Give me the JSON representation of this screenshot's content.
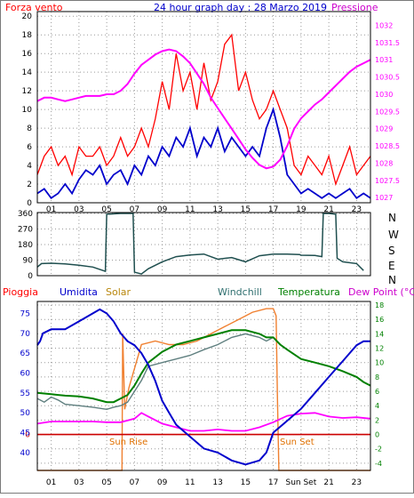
{
  "header": {
    "left_title": "Forza vento",
    "left_title_color": "#ff0000",
    "center_title": "24 hour graph day : 28 Marzo 2019",
    "center_title_color": "#0000cc",
    "right_title": "Pressione",
    "right_title_color": "#cc00cc"
  },
  "direction_labels": [
    "N",
    "W",
    "S",
    "E",
    "N"
  ],
  "bottom_headers": [
    {
      "text": "Pioggia",
      "color": "#ff0000"
    },
    {
      "text": "Umidita",
      "color": "#0000cc"
    },
    {
      "text": "Solar",
      "color": "#b8860b"
    },
    {
      "text": "Windchill",
      "color": "#2f6f6f"
    },
    {
      "text": "Temperatura",
      "color": "#008000"
    },
    {
      "text": "Dew Point (°C)",
      "color": "#cc00cc"
    }
  ],
  "annotations": {
    "sun_rise": "Sun Rise",
    "sun_set": "Sun Set",
    "sun_set_tick": "Sun Set",
    "color": "#e07000"
  },
  "colors": {
    "wind_speed": "#ff0000",
    "wind_avg": "#0000cc",
    "pressure": "#ff00ff",
    "direction": "#1f4f4f",
    "humidity": "#0000cc",
    "temperature": "#008000",
    "windchill": "#5f7f7f",
    "dewpoint": "#ff00ff",
    "solar": "#f08030",
    "rain": "#cc0000",
    "axis_left_bottom": "#0000cc",
    "axis_right_bottom": "#008000"
  },
  "chart_data": [
    {
      "type": "line",
      "name": "wind",
      "x_ticks": [
        "01",
        "03",
        "05",
        "07",
        "09",
        "11",
        "13",
        "15",
        "17",
        "19",
        "21",
        "23"
      ],
      "xlim": [
        0,
        24
      ],
      "y_left": {
        "ticks": [
          0,
          2,
          4,
          6,
          8,
          10,
          12,
          14,
          16,
          18,
          20
        ],
        "lim": [
          0,
          20.5
        ]
      },
      "y_right": {
        "ticks": [
          1027,
          1027.5,
          1028,
          1028.5,
          1029,
          1029.5,
          1030,
          1030.5,
          1031,
          1031.5,
          1032
        ],
        "lim": [
          1026.85,
          1032.4
        ]
      },
      "series": [
        {
          "name": "Forza vento",
          "axis": "left",
          "x": [
            0,
            0.5,
            1,
            1.5,
            2,
            2.5,
            3,
            3.5,
            4,
            4.5,
            5,
            5.5,
            6,
            6.5,
            7,
            7.5,
            8,
            8.5,
            9,
            9.5,
            10,
            10.5,
            11,
            11.5,
            12,
            12.5,
            13,
            13.5,
            14,
            14.5,
            15,
            15.5,
            16,
            16.5,
            17,
            17.5,
            18,
            18.5,
            19,
            19.5,
            20,
            20.5,
            21,
            21.5,
            22,
            22.5,
            23,
            23.5,
            24
          ],
          "values": [
            3,
            5,
            6,
            4,
            5,
            3,
            6,
            5,
            5,
            6,
            4,
            5,
            7,
            5,
            6,
            8,
            6,
            9,
            13,
            10,
            16,
            12,
            14,
            10,
            15,
            11,
            13,
            17,
            18,
            12,
            14,
            11,
            9,
            10,
            12,
            10,
            8,
            4,
            3,
            5,
            4,
            3,
            5,
            2,
            4,
            6,
            3,
            4,
            5
          ]
        },
        {
          "name": "Vento medio",
          "axis": "left",
          "x": [
            0,
            0.5,
            1,
            1.5,
            2,
            2.5,
            3,
            3.5,
            4,
            4.5,
            5,
            5.5,
            6,
            6.5,
            7,
            7.5,
            8,
            8.5,
            9,
            9.5,
            10,
            10.5,
            11,
            11.5,
            12,
            12.5,
            13,
            13.5,
            14,
            14.5,
            15,
            15.5,
            16,
            16.5,
            17,
            17.5,
            18,
            18.5,
            19,
            19.5,
            20,
            20.5,
            21,
            21.5,
            22,
            22.5,
            23,
            23.5,
            24
          ],
          "values": [
            1,
            1.5,
            0.5,
            1,
            2,
            1,
            2.5,
            3.5,
            3,
            4,
            2,
            3,
            3.5,
            2,
            4,
            3,
            5,
            4,
            6,
            5,
            7,
            6,
            8,
            5,
            7,
            6,
            8,
            5.5,
            7,
            6,
            5,
            6,
            5,
            8,
            10,
            7,
            3,
            2,
            1,
            1.5,
            1,
            0.5,
            1,
            0.5,
            1,
            1.5,
            0.5,
            1,
            0.5
          ]
        },
        {
          "name": "Pressione",
          "axis": "right",
          "x": [
            0,
            0.5,
            1,
            1.5,
            2,
            2.5,
            3,
            3.5,
            4,
            4.5,
            5,
            5.5,
            6,
            6.5,
            7,
            7.5,
            8,
            8.5,
            9,
            9.5,
            10,
            10.5,
            11,
            11.5,
            12,
            12.5,
            13,
            13.5,
            14,
            14.5,
            15,
            15.5,
            16,
            16.5,
            17,
            17.5,
            18,
            18.5,
            19,
            19.5,
            20,
            20.5,
            21,
            21.5,
            22,
            22.5,
            23,
            23.5,
            24
          ],
          "values": [
            1029.8,
            1029.9,
            1029.9,
            1029.85,
            1029.8,
            1029.85,
            1029.9,
            1029.95,
            1029.95,
            1029.95,
            1030.0,
            1030.0,
            1030.1,
            1030.3,
            1030.6,
            1030.85,
            1031.0,
            1031.15,
            1031.25,
            1031.3,
            1031.25,
            1031.1,
            1030.9,
            1030.6,
            1030.3,
            1029.9,
            1029.6,
            1029.3,
            1029.0,
            1028.7,
            1028.4,
            1028.15,
            1027.95,
            1027.85,
            1027.9,
            1028.1,
            1028.5,
            1029.0,
            1029.3,
            1029.5,
            1029.7,
            1029.85,
            1030.05,
            1030.25,
            1030.45,
            1030.65,
            1030.8,
            1030.9,
            1031.0
          ]
        }
      ]
    },
    {
      "type": "line",
      "name": "direction",
      "x_ticks": [
        "01",
        "03",
        "05",
        "07",
        "09",
        "11",
        "13",
        "15",
        "17",
        "19",
        "21",
        "23"
      ],
      "xlim": [
        0,
        24
      ],
      "y_left": {
        "ticks": [
          0,
          90,
          180,
          270,
          360
        ],
        "lim": [
          0,
          365
        ]
      },
      "series": [
        {
          "name": "Direzione",
          "x": [
            0,
            0.3,
            1,
            2,
            3,
            4,
            4.9,
            5,
            6,
            6.9,
            7,
            7.5,
            8,
            9,
            10,
            11,
            12,
            13,
            14,
            15,
            16,
            17,
            18,
            18.9,
            19,
            20,
            20.5,
            20.6,
            21,
            21.5,
            21.6,
            22,
            23,
            23.5
          ],
          "values": [
            50,
            70,
            72,
            68,
            60,
            50,
            25,
            355,
            360,
            360,
            20,
            10,
            40,
            80,
            110,
            120,
            125,
            95,
            105,
            80,
            115,
            125,
            125,
            122,
            118,
            117,
            110,
            360,
            360,
            355,
            100,
            80,
            70,
            30
          ]
        }
      ]
    },
    {
      "type": "line",
      "name": "temperature-humidity",
      "x_ticks": [
        "01",
        "03",
        "05",
        "07",
        "09",
        "11",
        "13",
        "15",
        "17",
        "Sun Set",
        "21",
        "23"
      ],
      "xlim": [
        0,
        24
      ],
      "y_left": {
        "ticks": [
          40,
          45,
          50,
          55,
          60,
          65,
          70,
          75
        ],
        "lim": [
          35.5,
          78
        ]
      },
      "y_right": {
        "ticks": [
          -4,
          -2,
          0,
          2,
          4,
          6,
          8,
          10,
          12,
          14,
          16,
          18
        ],
        "lim": [
          -5,
          18.5
        ]
      },
      "rain_marker": {
        "label": "0",
        "value": 0
      },
      "series": [
        {
          "name": "Umidita",
          "axis": "left",
          "x": [
            0,
            0.2,
            0.4,
            1,
            2,
            3,
            4,
            4.5,
            5,
            5.5,
            6,
            6.5,
            7,
            7.5,
            8,
            8.5,
            9,
            9.5,
            10,
            11,
            12,
            13,
            14,
            15,
            16,
            16.5,
            17,
            18,
            19,
            20,
            21,
            22,
            22.5,
            23,
            23.5,
            24
          ],
          "values": [
            67,
            68,
            70,
            71,
            71,
            73,
            75,
            76,
            75,
            73,
            70,
            68,
            67,
            65,
            62,
            58,
            53,
            50,
            47,
            44,
            41,
            40,
            38,
            37,
            38,
            40,
            45,
            48,
            51,
            55,
            59,
            63,
            65,
            67,
            68,
            68
          ]
        },
        {
          "name": "Temperatura",
          "axis": "right",
          "x": [
            0,
            0.5,
            1,
            1.5,
            2,
            3,
            4,
            5,
            5.5,
            6,
            6.5,
            7,
            7.5,
            8,
            9,
            10,
            11,
            12,
            13,
            14,
            15,
            16,
            16.5,
            17,
            17.5,
            18,
            19,
            20,
            21,
            22,
            23,
            23.5,
            24
          ],
          "values": [
            5.8,
            5.7,
            5.6,
            5.5,
            5.4,
            5.3,
            5.0,
            4.5,
            4.5,
            5.0,
            5.5,
            6.8,
            8.5,
            10.0,
            11.5,
            12.5,
            13.0,
            13.5,
            14.0,
            14.5,
            14.5,
            14.0,
            13.5,
            13.5,
            12.5,
            11.8,
            10.5,
            10.0,
            9.5,
            8.8,
            8.0,
            7.3,
            6.8
          ]
        },
        {
          "name": "Windchill",
          "axis": "right",
          "x": [
            0,
            0.5,
            1,
            1.5,
            2,
            3,
            4,
            5,
            5.5,
            6,
            6.5,
            7,
            7.5,
            8,
            9,
            10,
            11,
            12,
            13,
            14,
            15,
            16,
            16.5,
            17,
            17.5
          ],
          "values": [
            5.0,
            4.5,
            5.2,
            4.8,
            4.2,
            4.0,
            3.8,
            3.5,
            3.8,
            4.0,
            4.5,
            6.0,
            7.5,
            9.5,
            10.0,
            10.5,
            11.0,
            11.8,
            12.5,
            13.5,
            14.0,
            13.5,
            13.0,
            13.5,
            12.5
          ]
        },
        {
          "name": "Dew Point",
          "axis": "right",
          "x": [
            0,
            1,
            2,
            3,
            4,
            5,
            6,
            7,
            7.5,
            8,
            8.5,
            9,
            10,
            11,
            12,
            13,
            14,
            15,
            16,
            17,
            18,
            19,
            20,
            21,
            22,
            23,
            24
          ],
          "values": [
            1.5,
            1.8,
            1.8,
            1.8,
            1.8,
            1.7,
            1.7,
            2.2,
            3.0,
            2.5,
            2.0,
            1.5,
            1.0,
            0.5,
            0.5,
            0.7,
            0.5,
            0.5,
            1.0,
            1.7,
            2.6,
            2.9,
            3.0,
            2.5,
            2.3,
            2.4,
            2.2
          ]
        },
        {
          "name": "Solar",
          "axis": "right",
          "x": [
            0,
            6.1,
            6.15,
            6.3,
            6.6,
            7.5,
            8.5,
            9.5,
            10.5,
            11.5,
            12.5,
            13.5,
            14.5,
            15.5,
            16.5,
            17,
            17.2,
            17.3,
            17.4,
            24
          ],
          "values": [
            -5,
            -5,
            14.0,
            3.5,
            6.5,
            12.5,
            13.0,
            12.5,
            12.5,
            13.0,
            14.0,
            15.0,
            16.0,
            17.0,
            17.5,
            17.5,
            16.5,
            5.0,
            -5,
            -5
          ]
        }
      ]
    }
  ]
}
